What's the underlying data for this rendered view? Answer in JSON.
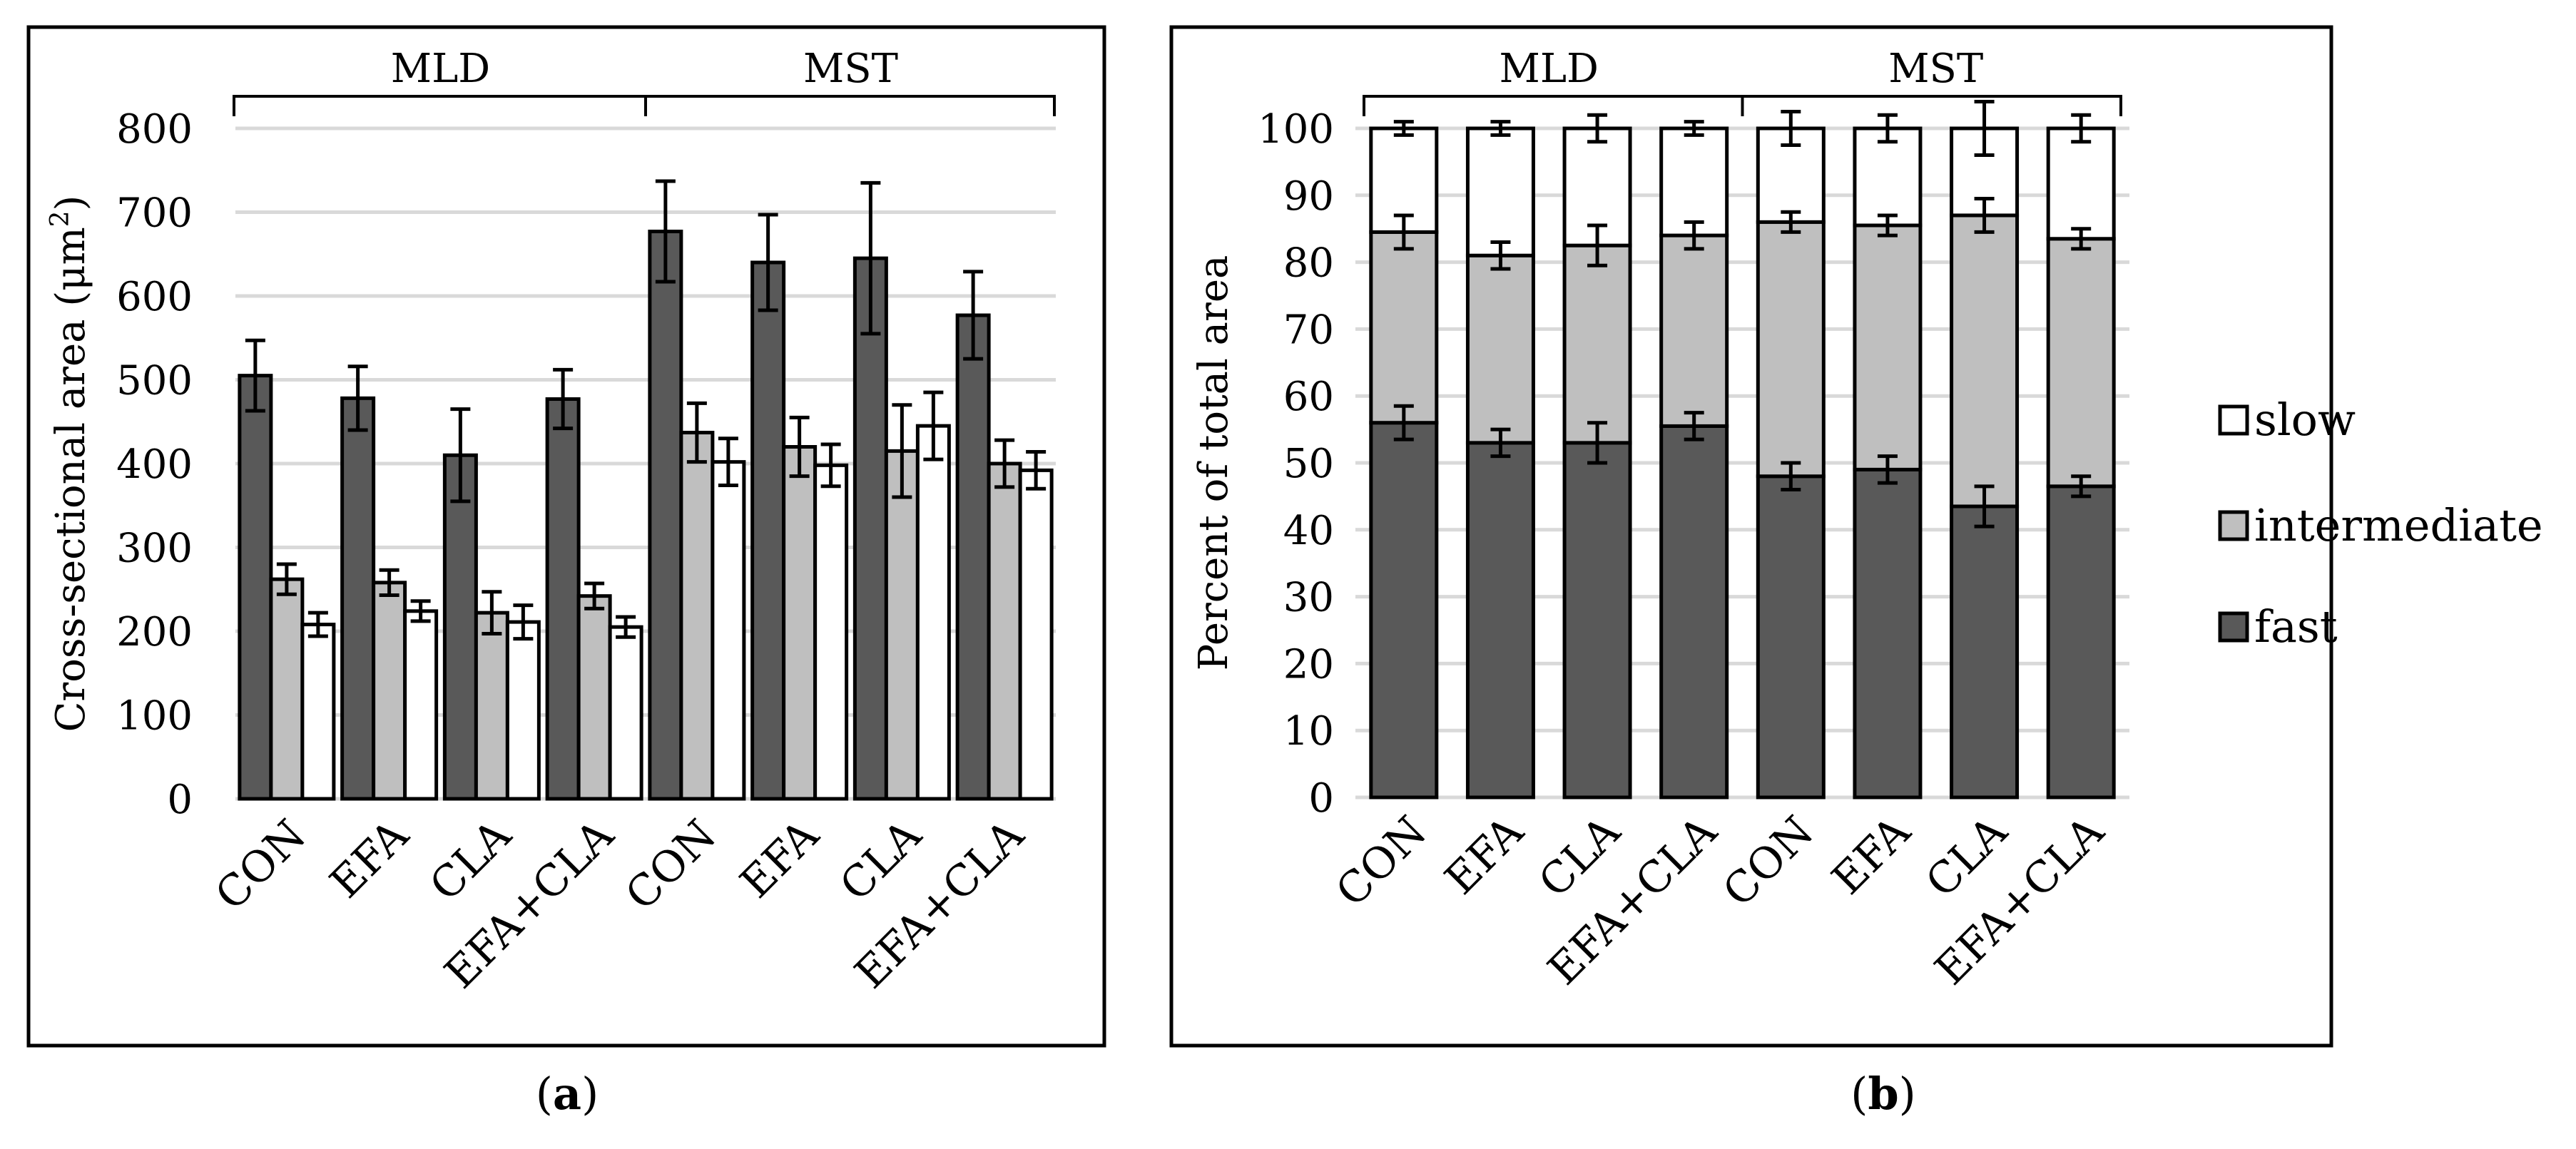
{
  "chart_data": [
    {
      "type": "bar",
      "panel_label": "a",
      "ylabel": "Cross-sectional area (μm²)",
      "ylabel_base": "Cross-sectional area (μm",
      "ylabel_sup": "2",
      "ylabel_tail": ")",
      "ylim": [
        0,
        800
      ],
      "y_ticks": [
        "0",
        "100",
        "200",
        "300",
        "400",
        "500",
        "600",
        "700",
        "800"
      ],
      "grid": true,
      "groups": [
        "MLD",
        "MST"
      ],
      "categories": [
        "CON",
        "EFA",
        "CLA",
        "EFA+CLA",
        "CON",
        "EFA",
        "CLA",
        "EFA+CLA"
      ],
      "series": [
        {
          "name": "fast",
          "color": "#595959",
          "values": [
            505,
            478,
            410,
            477,
            677,
            640,
            645,
            577
          ],
          "errors": [
            42,
            38,
            55,
            35,
            60,
            57,
            90,
            52
          ]
        },
        {
          "name": "intermediate",
          "color": "#bfbfbf",
          "values": [
            262,
            258,
            222,
            242,
            437,
            420,
            415,
            400
          ],
          "errors": [
            18,
            15,
            25,
            15,
            35,
            35,
            55,
            28
          ]
        },
        {
          "name": "slow",
          "color": "#ffffff",
          "values": [
            208,
            224,
            211,
            205,
            402,
            398,
            445,
            392
          ],
          "errors": [
            14,
            12,
            20,
            12,
            28,
            25,
            40,
            22
          ]
        }
      ]
    },
    {
      "type": "stacked_bar",
      "panel_label": "b",
      "ylabel": "Percent of total area",
      "ylim": [
        0,
        100
      ],
      "y_ticks": [
        "0",
        "10",
        "20",
        "30",
        "40",
        "50",
        "60",
        "70",
        "80",
        "90",
        "100"
      ],
      "grid": true,
      "groups": [
        "MLD",
        "MST"
      ],
      "categories": [
        "CON",
        "EFA",
        "CLA",
        "EFA+CLA",
        "CON",
        "EFA",
        "CLA",
        "EFA+CLA"
      ],
      "series": [
        {
          "name": "fast",
          "color": "#595959",
          "values": [
            56,
            53,
            53,
            55.5,
            48,
            49,
            43.5,
            46.5
          ],
          "errors": [
            2.5,
            2,
            3,
            2,
            2,
            2,
            3,
            1.5
          ]
        },
        {
          "name": "intermediate",
          "color": "#bfbfbf",
          "values": [
            28.5,
            28,
            29.5,
            28.5,
            38,
            36.5,
            43.5,
            37
          ],
          "errors": [
            2.5,
            2,
            3,
            2,
            1.5,
            1.5,
            2.5,
            1.5
          ]
        },
        {
          "name": "slow",
          "color": "#ffffff",
          "values": [
            15.5,
            19,
            17.5,
            16,
            14,
            14.5,
            13,
            16.5
          ],
          "errors": [
            1,
            1,
            2,
            1,
            2.5,
            2,
            4,
            2
          ]
        }
      ],
      "legend": {
        "position": "right",
        "order": [
          "slow",
          "intermediate",
          "fast"
        ]
      }
    }
  ]
}
